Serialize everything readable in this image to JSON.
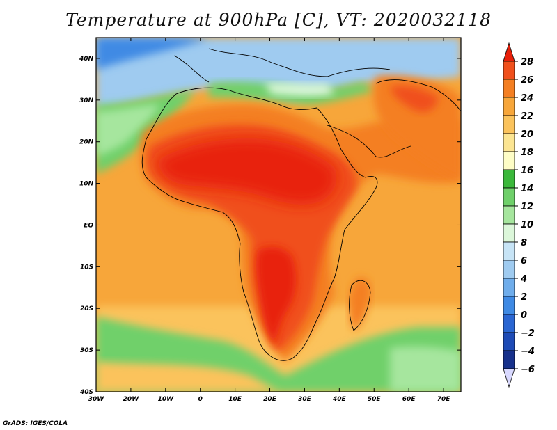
{
  "title": "Temperature at 900hPa [C], VT: 2020032118",
  "credit": "GrADS: IGES/COLA",
  "map": {
    "lon_range": [
      -30,
      75
    ],
    "lat_range": [
      -40,
      45
    ],
    "lon_ticks": [
      {
        "value": -30,
        "label": "30W"
      },
      {
        "value": -20,
        "label": "20W"
      },
      {
        "value": -10,
        "label": "10W"
      },
      {
        "value": 0,
        "label": "0"
      },
      {
        "value": 10,
        "label": "10E"
      },
      {
        "value": 20,
        "label": "20E"
      },
      {
        "value": 30,
        "label": "30E"
      },
      {
        "value": 40,
        "label": "40E"
      },
      {
        "value": 50,
        "label": "50E"
      },
      {
        "value": 60,
        "label": "60E"
      },
      {
        "value": 70,
        "label": "70E"
      }
    ],
    "lat_ticks": [
      {
        "value": 40,
        "label": "40N"
      },
      {
        "value": 30,
        "label": "30N"
      },
      {
        "value": 20,
        "label": "20N"
      },
      {
        "value": 10,
        "label": "10N"
      },
      {
        "value": 0,
        "label": "EQ"
      },
      {
        "value": -10,
        "label": "10S"
      },
      {
        "value": -20,
        "label": "20S"
      },
      {
        "value": -30,
        "label": "30S"
      },
      {
        "value": -40,
        "label": "40S"
      }
    ]
  },
  "colorbar": {
    "levels": [
      "28",
      "26",
      "24",
      "22",
      "20",
      "18",
      "16",
      "14",
      "12",
      "10",
      "8",
      "6",
      "4",
      "2",
      "0",
      "−2",
      "−4",
      "−6"
    ],
    "colors": [
      "#e8200a",
      "#f0501c",
      "#f47f22",
      "#f7a63a",
      "#fbc35c",
      "#fce592",
      "#fefdc6",
      "#3bb83b",
      "#6fd06a",
      "#a6e69e",
      "#dcf7da",
      "#c7e4f6",
      "#9fcbf0",
      "#6fadeb",
      "#3f8ae4",
      "#2a66d2",
      "#1e4bb6",
      "#17318c",
      "#101d5e"
    ]
  }
}
